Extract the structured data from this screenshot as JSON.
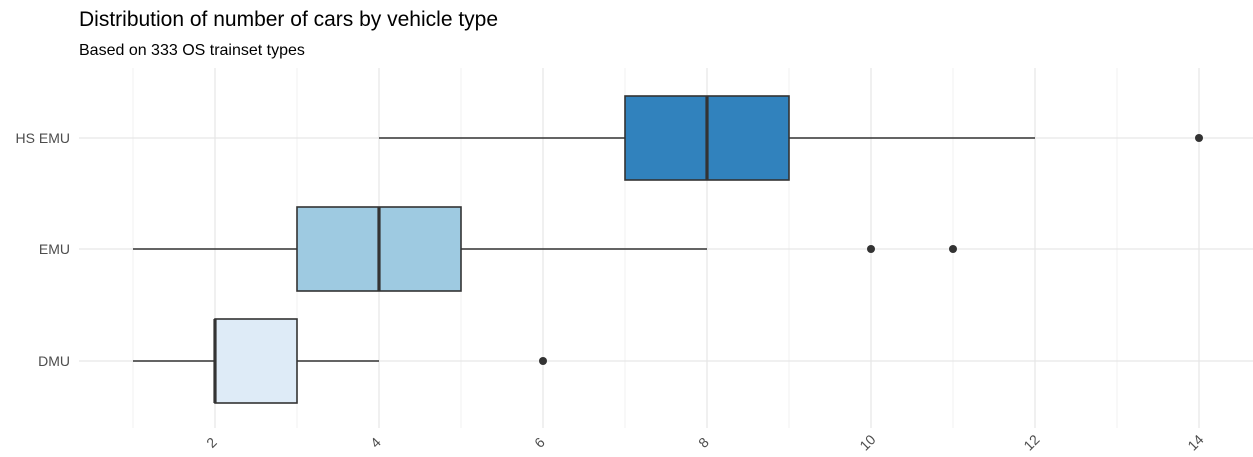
{
  "chart_data": {
    "type": "boxplot",
    "title": "Distribution of number of cars by vehicle type",
    "subtitle": "Based on 333 OS trainset types",
    "xlabel": "",
    "ylabel": "",
    "x_ticks": [
      2,
      4,
      6,
      8,
      10,
      12,
      14
    ],
    "xlim": [
      0.8,
      15.4
    ],
    "grid": true,
    "legend": "none",
    "categories": [
      "HS EMU",
      "EMU",
      "DMU"
    ],
    "boxes": [
      {
        "category": "HS EMU",
        "whisker_low": 4,
        "q1": 7,
        "median": 8,
        "q3": 9,
        "whisker_high": 12,
        "outliers": [
          14
        ],
        "color": "#3182bd"
      },
      {
        "category": "EMU",
        "whisker_low": 1,
        "q1": 3,
        "median": 4,
        "q3": 5,
        "whisker_high": 8,
        "outliers": [
          10,
          11
        ],
        "color": "#9ecae1"
      },
      {
        "category": "DMU",
        "whisker_low": 1,
        "q1": 2,
        "median": 2,
        "q3": 3,
        "whisker_high": 4,
        "outliers": [
          6
        ],
        "color": "#deebf7"
      }
    ]
  }
}
